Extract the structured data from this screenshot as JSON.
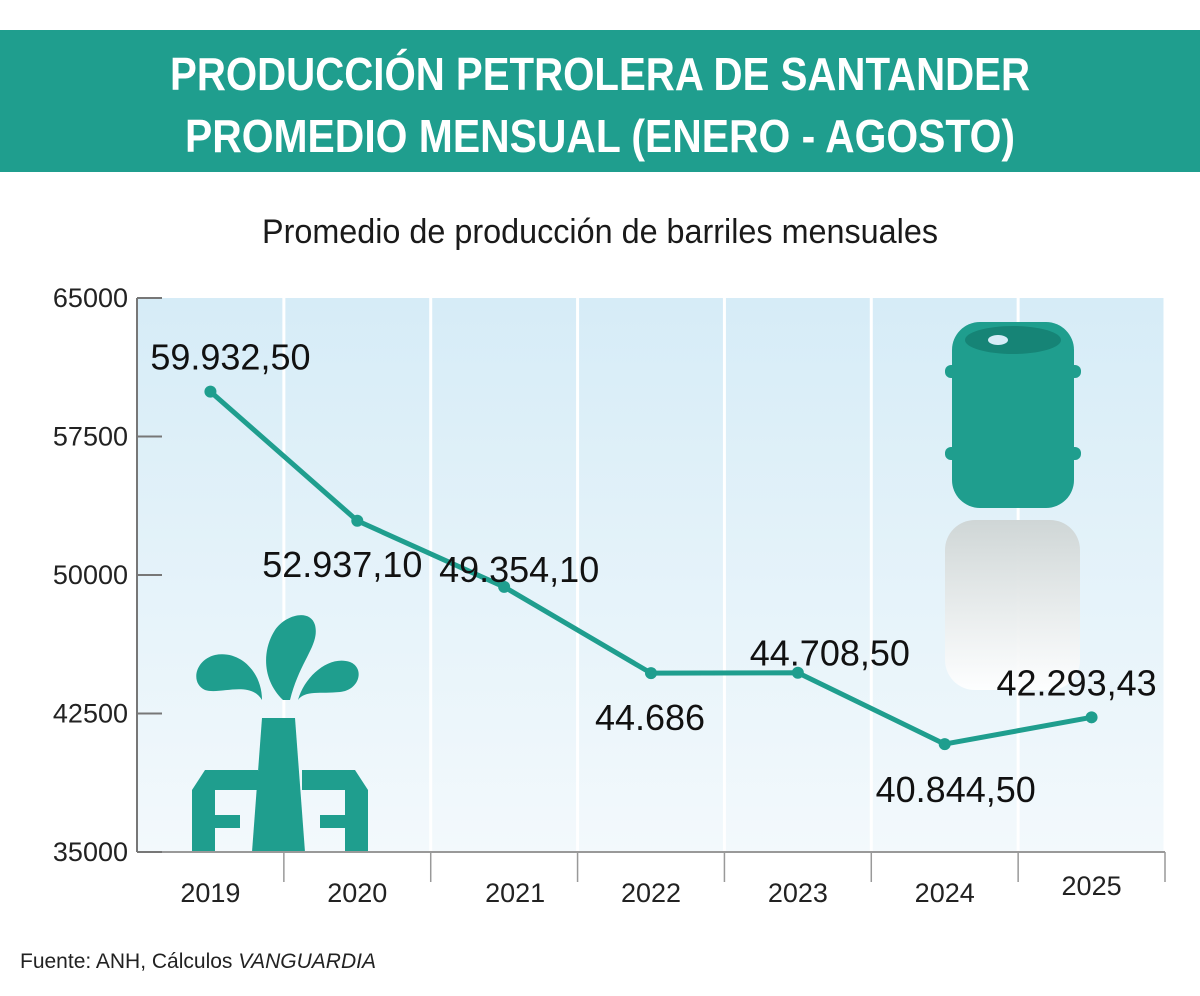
{
  "header": {
    "title_line1": "PRODUCCIÓN PETROLERA DE SANTANDER",
    "title_line2": "PROMEDIO MENSUAL (ENERO - AGOSTO)",
    "background": "#1f9e8e"
  },
  "chart_data": {
    "type": "line",
    "title": "Promedio de producción de barriles mensuales",
    "xlabel": "",
    "ylabel": "",
    "categories": [
      "2019",
      "2020",
      "2021",
      "2022",
      "2023",
      "2024",
      "2025"
    ],
    "values": [
      59932.5,
      52937.1,
      49354.1,
      44686,
      44708.5,
      40844.5,
      42293.43
    ],
    "data_labels": [
      "59.932,50",
      "52.937,10",
      "49.354,10",
      "44.686",
      "44.708,50",
      "40.844,50",
      "42.293,43"
    ],
    "ylim": [
      35000,
      65000
    ],
    "yticks": [
      "65000",
      "57500",
      "50000",
      "42500",
      "35000"
    ],
    "grid": "vertical",
    "line_color": "#1f9e8e",
    "plot_background": "light-blue-gradient"
  },
  "icons": [
    "oil-well-icon",
    "oil-barrel-icon"
  ],
  "footer": {
    "source_prefix": "Fuente: ANH, Cálculos ",
    "source_outlet": "VANGUARDIA"
  }
}
